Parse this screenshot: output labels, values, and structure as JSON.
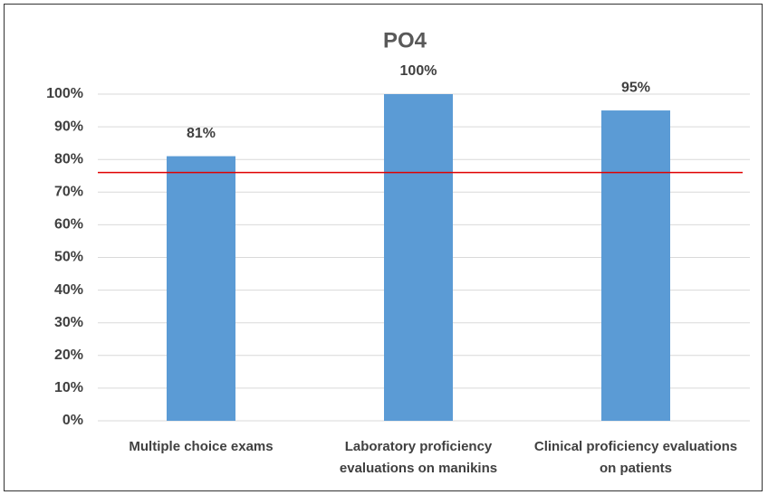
{
  "chart_data": {
    "type": "bar",
    "title": "PO4",
    "categories": [
      "Multiple choice exams",
      "Laboratory proficiency evaluations on manikins",
      "Clinical proficiency evaluations on patients"
    ],
    "values": [
      81,
      100,
      95
    ],
    "value_labels": [
      "81%",
      "100%",
      "95%"
    ],
    "color": "#5b9bd5",
    "ylim": [
      0,
      100
    ],
    "yticks": [
      {
        "value": 0,
        "label": "0%"
      },
      {
        "value": 10,
        "label": "10%"
      },
      {
        "value": 20,
        "label": "20%"
      },
      {
        "value": 30,
        "label": "30%"
      },
      {
        "value": 40,
        "label": "40%"
      },
      {
        "value": 50,
        "label": "50%"
      },
      {
        "value": 60,
        "label": "60%"
      },
      {
        "value": 70,
        "label": "70%"
      },
      {
        "value": 80,
        "label": "80%"
      },
      {
        "value": 90,
        "label": "90%"
      },
      {
        "value": 100,
        "label": "100%"
      }
    ],
    "grid": true,
    "threshold": 76,
    "threshold_color": "#e00000"
  }
}
